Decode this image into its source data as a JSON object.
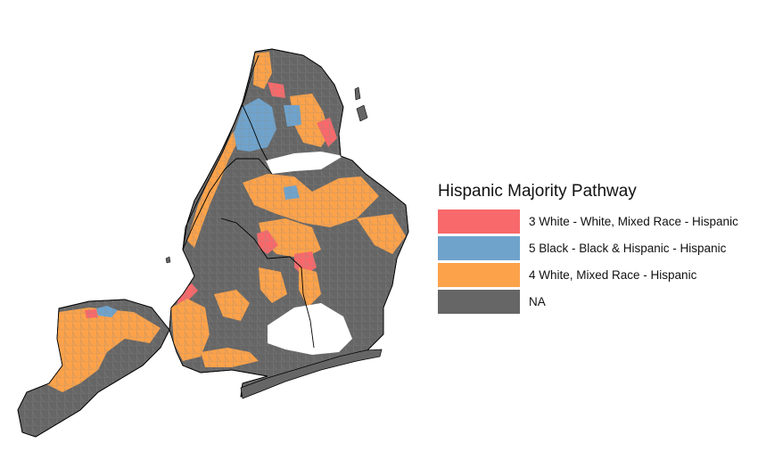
{
  "colors": {
    "background": "#ffffff",
    "border": "#000000",
    "tract_lines": "#8a8a8a"
  },
  "legend": {
    "title": "Hispanic Majority Pathway",
    "items": [
      {
        "label": "3 White - White, Mixed Race - Hispanic",
        "color": "#f8696b"
      },
      {
        "label": "5 Black - Black & Hispanic - Hispanic",
        "color": "#6fa3cc"
      },
      {
        "label": "4 White, Mixed Race - Hispanic",
        "color": "#fca24a"
      },
      {
        "label": "NA",
        "color": "#666666"
      }
    ]
  }
}
